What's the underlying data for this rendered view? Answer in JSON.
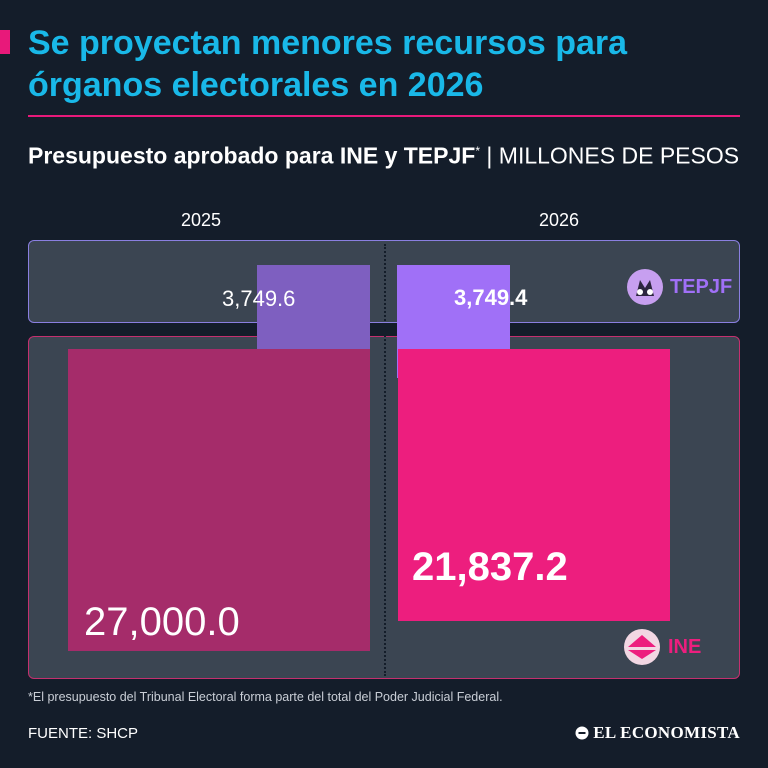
{
  "title": "Se proyectan menores recursos para órganos electorales en 2026",
  "subtitle": {
    "main": "Presupuesto aprobado para INE y TEPJF",
    "footnote_mark": "*",
    "separator": "|",
    "units": "MILLONES DE PESOS"
  },
  "chart_data": {
    "type": "bar",
    "categories": [
      "2025",
      "2026"
    ],
    "series": [
      {
        "name": "TEPJF",
        "values": [
          3749.6,
          3749.4
        ],
        "labels": [
          "3,749.6",
          "3,749.4"
        ],
        "colors": [
          "#7e5fc0",
          "#a070f7"
        ]
      },
      {
        "name": "INE",
        "values": [
          27000.0,
          21837.2
        ],
        "labels": [
          "27,000.0",
          "21,837.2"
        ],
        "colors": [
          "#a52c6a",
          "#ed1e7e"
        ]
      }
    ],
    "max_value": 27000.0
  },
  "logos": {
    "tepjf": "TEPJF",
    "ine": "INE"
  },
  "footnote": "*El presupuesto del Tribunal Electoral forma parte del total del Poder Judicial Federal.",
  "source": "FUENTE: SHCP",
  "brand": "EL ECONOMISTA",
  "colors": {
    "title": "#19b8e8",
    "accent": "#e8197a",
    "background": "#141d2a",
    "panel": "#3b4552"
  }
}
